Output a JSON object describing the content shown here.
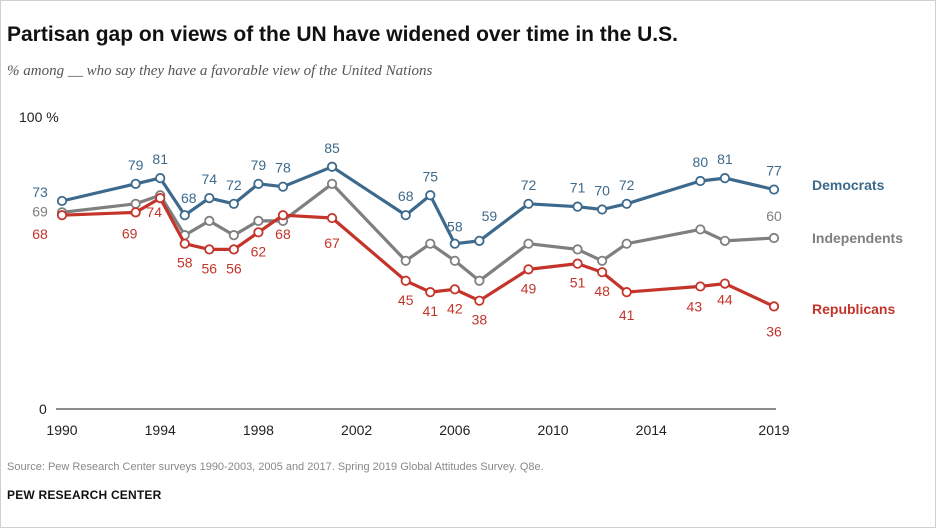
{
  "header": {
    "title": "Partisan gap on views of the UN have widened over time in the U.S.",
    "subtitle": "% among __ who say they have a favorable view of the United Nations"
  },
  "footer": {
    "source": "Source: Pew Research Center surveys 1990-2003, 2005 and 2017. Spring 2019 Global Attitudes Survey. Q8e.",
    "brand": "PEW RESEARCH CENTER"
  },
  "chart_data": {
    "type": "line",
    "title": "Partisan gap on views of the UN have widened over time in the U.S.",
    "xlabel": "",
    "ylabel": "",
    "ylim": [
      0,
      100
    ],
    "xlim": [
      1990,
      2019
    ],
    "y_ticks": [
      {
        "value": 100,
        "label": "100 %"
      },
      {
        "value": 0,
        "label": "0"
      }
    ],
    "x_ticks": [
      {
        "value": 1990,
        "label": "1990"
      },
      {
        "value": 1994,
        "label": "1994"
      },
      {
        "value": 1998,
        "label": "1998"
      },
      {
        "value": 2002,
        "label": "2002"
      },
      {
        "value": 2006,
        "label": "2006"
      },
      {
        "value": 2010,
        "label": "2010"
      },
      {
        "value": 2014,
        "label": "2014"
      },
      {
        "value": 2019,
        "label": "2019"
      }
    ],
    "series": [
      {
        "name": "Democrats",
        "color": "#3d6a8c",
        "x": [
          1990,
          1993,
          1994,
          1995,
          1996,
          1997,
          1998,
          1999,
          2001,
          2004,
          2005,
          2006,
          2007,
          2009,
          2011,
          2012,
          2013,
          2016,
          2017,
          2019
        ],
        "values": [
          73,
          79,
          81,
          68,
          74,
          72,
          79,
          78,
          85,
          68,
          75,
          58,
          59,
          72,
          71,
          70,
          72,
          80,
          81,
          77
        ],
        "labels": [
          "73",
          "79",
          "81",
          "68",
          "74",
          "72",
          "79",
          "78",
          "85",
          "68",
          "75",
          "58",
          "59",
          "72",
          "71",
          "70",
          "72",
          "80",
          "81",
          "77"
        ]
      },
      {
        "name": "Independents",
        "color": "#7f7f7f",
        "x": [
          1990,
          1993,
          1994,
          1995,
          1996,
          1997,
          1998,
          1999,
          2001,
          2004,
          2005,
          2006,
          2007,
          2009,
          2011,
          2012,
          2013,
          2016,
          2017,
          2019
        ],
        "values": [
          69,
          72,
          75,
          61,
          66,
          61,
          66,
          66,
          79,
          52,
          58,
          52,
          45,
          58,
          56,
          52,
          58,
          63,
          59,
          60
        ],
        "labels": [
          "69",
          "",
          "",
          "",
          "",
          "",
          "",
          "",
          "",
          "",
          "",
          "",
          "",
          "",
          "",
          "",
          "",
          "",
          "",
          "60"
        ]
      },
      {
        "name": "Republicans",
        "color": "#c4342b",
        "x": [
          1990,
          1993,
          1994,
          1995,
          1996,
          1997,
          1998,
          1999,
          2001,
          2004,
          2005,
          2006,
          2007,
          2009,
          2011,
          2012,
          2013,
          2016,
          2017,
          2019
        ],
        "values": [
          68,
          69,
          74,
          58,
          56,
          56,
          62,
          68,
          67,
          45,
          41,
          42,
          38,
          49,
          51,
          48,
          41,
          43,
          44,
          36
        ],
        "labels": [
          "68",
          "69",
          "74",
          "58",
          "56",
          "56",
          "62",
          "68",
          "67",
          "45",
          "41",
          "42",
          "38",
          "49",
          "51",
          "48",
          "41",
          "43",
          "44",
          "36"
        ]
      }
    ]
  }
}
